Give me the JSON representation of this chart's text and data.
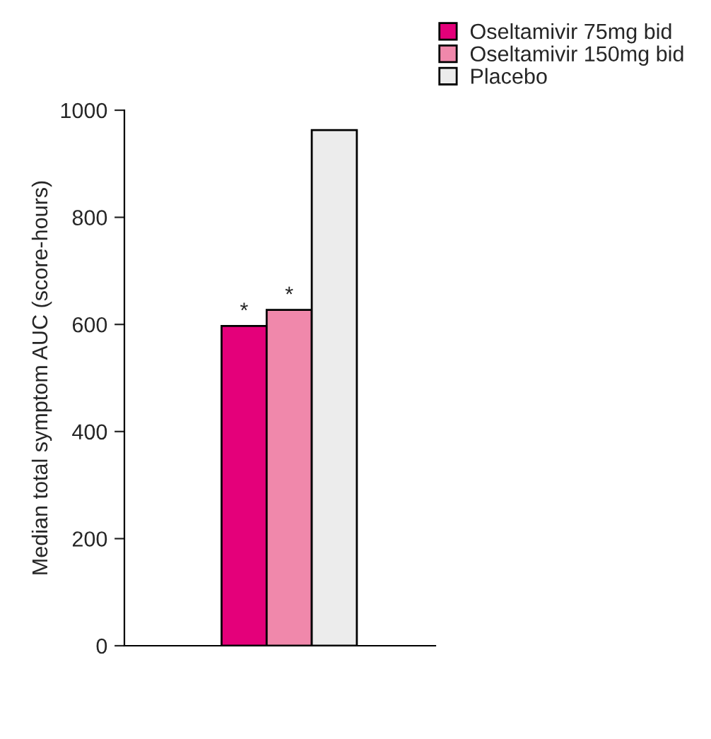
{
  "chart_data": {
    "type": "bar",
    "ylabel": "Median total symptom AUC (score-hours)",
    "categories": [
      null
    ],
    "series": [
      {
        "name": "Oseltamivir 75mg bid",
        "color": "#e4007a",
        "values": [
          597
        ]
      },
      {
        "name": "Oseltamivir 150mg bid",
        "color": "#f088ab",
        "values": [
          627
        ]
      },
      {
        "name": "Placebo",
        "color": "#ececec",
        "values": [
          963
        ]
      }
    ],
    "annotations": [
      "*",
      "*"
    ],
    "ylim": [
      0,
      1000
    ],
    "yticks": [
      0,
      200,
      400,
      600,
      800,
      1000
    ],
    "grid": false,
    "legend": "top right"
  }
}
